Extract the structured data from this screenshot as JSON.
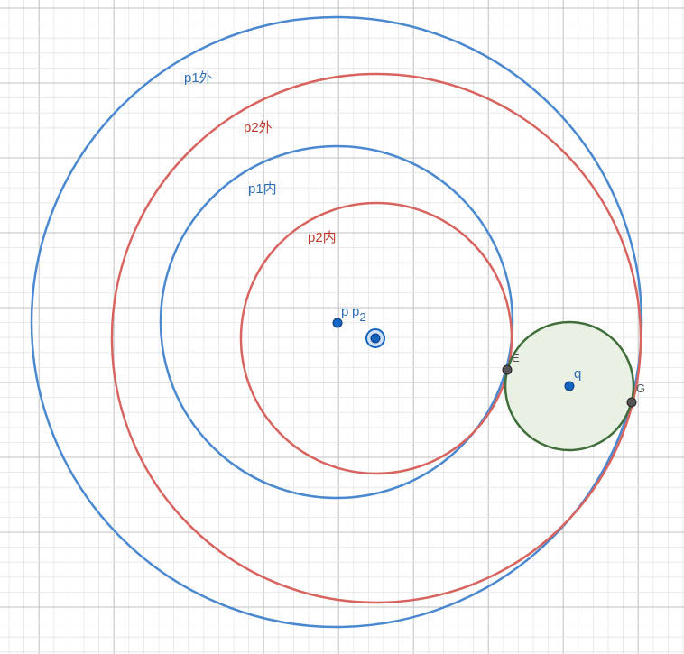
{
  "colors": {
    "background": "#ffffff",
    "grid_minor": "#e6e6e6",
    "grid_major": "#c0c0c0",
    "blue": "#4a88cf",
    "red": "#d86460",
    "green": "#3f6e3a",
    "green_fill": "#e9f0e4",
    "point_blue": "#1565c0",
    "point_gray": "#555555",
    "label_blue": "#2f6eb3",
    "label_red": "#c0392b",
    "label_gray": "#555555"
  },
  "circles": {
    "p1_outer": {
      "label": "p1外"
    },
    "p2_outer": {
      "label": "p2外"
    },
    "p1_inner": {
      "label": "p1内"
    },
    "p2_inner": {
      "label": "p2内"
    },
    "q_circle": {
      "label": ""
    }
  },
  "points": {
    "p": {
      "label": "p"
    },
    "p2": {
      "label_main": "p",
      "label_sub": "2"
    },
    "q": {
      "label": "q"
    },
    "E": {
      "label": "E"
    },
    "G": {
      "label": "G"
    }
  }
}
